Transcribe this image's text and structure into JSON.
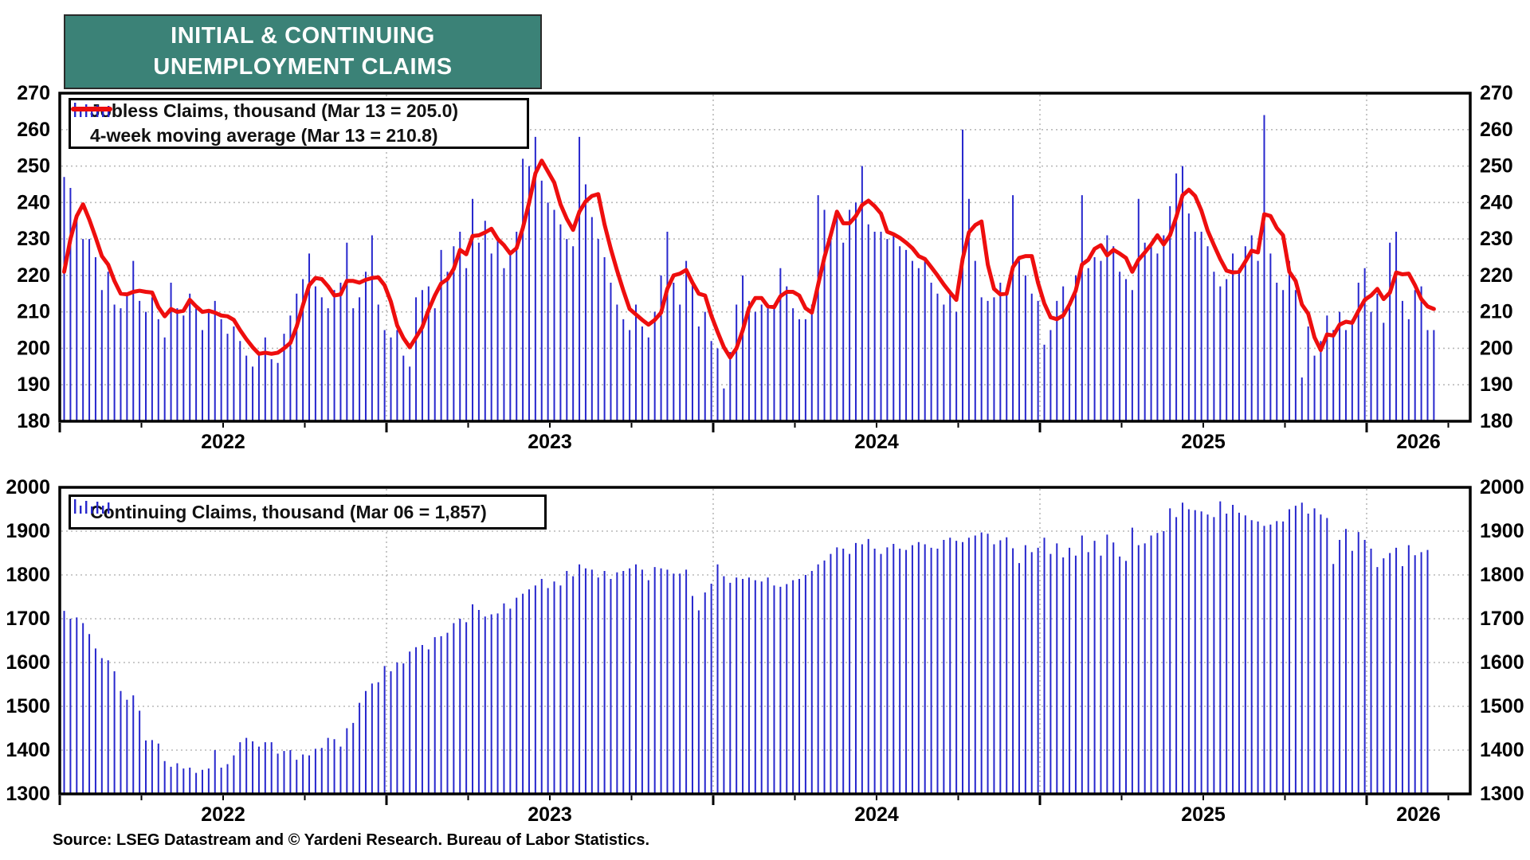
{
  "title": {
    "line1": "INITIAL & CONTINUING",
    "line2": "UNEMPLOYMENT CLAIMS"
  },
  "source": "Source: LSEG Datastream and © Yardeni Research. Bureau of Labor Statistics.",
  "colors": {
    "title_bg": "#3b8277",
    "bar": "#2727cd",
    "ma_line": "#ee0e0e",
    "grid": "#b9b9b9",
    "frame": "#000000",
    "text": "#000000"
  },
  "chart_data": [
    {
      "type": "bar",
      "name": "initial-claims",
      "legend": [
        {
          "label": "Jobless Claims, thousand (Mar 13 = 205.0)",
          "series": "values",
          "marker": "bars"
        },
        {
          "label": "4-week moving average (Mar 13 = 210.8)",
          "series": "ma4",
          "marker": "line"
        }
      ],
      "x_start": "2022-01-07",
      "x_freq": "weekly",
      "first_year": 2022,
      "weeks_per_year": 52,
      "year_labels": [
        "2022",
        "2023",
        "2024",
        "2025",
        "2026"
      ],
      "ylim": [
        180,
        270
      ],
      "ytick_step": 10,
      "grid": true,
      "values": [
        247,
        244,
        237,
        230,
        230,
        225,
        216,
        221,
        212,
        211,
        215,
        224,
        213,
        210,
        214,
        208,
        203,
        218,
        211,
        209,
        215,
        211,
        205,
        210,
        213,
        208,
        204,
        206,
        202,
        198,
        195,
        199,
        203,
        197,
        196,
        204,
        209,
        215,
        219,
        226,
        217,
        214,
        211,
        216,
        218,
        229,
        211,
        214,
        221,
        231,
        212,
        205,
        203,
        205,
        198,
        195,
        214,
        216,
        217,
        211,
        227,
        221,
        228,
        232,
        222,
        241,
        229,
        235,
        226,
        230,
        222,
        226,
        232,
        252,
        250,
        258,
        246,
        240,
        238,
        234,
        230,
        228,
        258,
        245,
        236,
        230,
        225,
        218,
        212,
        208,
        205,
        212,
        206,
        203,
        210,
        220,
        232,
        218,
        212,
        224,
        218,
        206,
        210,
        202,
        200,
        189,
        199,
        212,
        220,
        213,
        210,
        212,
        211,
        212,
        222,
        217,
        211,
        208,
        208,
        212,
        242,
        238,
        232,
        238,
        229,
        238,
        240,
        250,
        234,
        232,
        232,
        230,
        231,
        228,
        227,
        224,
        222,
        225,
        218,
        215,
        212,
        216,
        210,
        260,
        241,
        224,
        214,
        213,
        214,
        218,
        215,
        242,
        224,
        220,
        215,
        213,
        201,
        205,
        213,
        217,
        213,
        220,
        242,
        222,
        225,
        224,
        231,
        228,
        221,
        219,
        216,
        241,
        229,
        228,
        226,
        231,
        239,
        248,
        250,
        237,
        232,
        232,
        228,
        221,
        217,
        219,
        226,
        222,
        228,
        231,
        224,
        264,
        226,
        218,
        216,
        224,
        216,
        192,
        206,
        198,
        202,
        209,
        205,
        210,
        205,
        208,
        218,
        222,
        210,
        215,
        207,
        229,
        232,
        213,
        208,
        216,
        217,
        205,
        205
      ],
      "ma4": [
        221.0,
        230.0,
        236.3,
        239.5,
        235.3,
        230.5,
        225.3,
        223.0,
        218.5,
        215.0,
        214.8,
        215.5,
        215.8,
        215.5,
        215.3,
        211.3,
        208.8,
        210.8,
        210.0,
        210.3,
        213.3,
        211.5,
        210.0,
        210.3,
        209.8,
        209.0,
        208.8,
        207.8,
        205.0,
        202.5,
        200.3,
        198.5,
        198.8,
        198.5,
        198.8,
        200.0,
        201.5,
        206.0,
        211.8,
        217.3,
        219.3,
        219.0,
        217.0,
        214.5,
        214.8,
        218.5,
        218.5,
        218.0,
        218.8,
        219.3,
        219.5,
        217.3,
        212.8,
        206.3,
        202.8,
        200.3,
        203.0,
        205.8,
        210.5,
        214.5,
        217.8,
        219.0,
        221.8,
        227.0,
        225.8,
        230.8,
        231.0,
        231.8,
        232.8,
        230.0,
        228.3,
        226.0,
        227.5,
        233.0,
        240.0,
        248.0,
        251.5,
        248.5,
        245.5,
        239.5,
        235.5,
        232.5,
        237.5,
        240.3,
        241.8,
        242.3,
        234.0,
        227.3,
        221.3,
        215.8,
        210.8,
        209.3,
        207.8,
        206.5,
        207.8,
        209.8,
        216.3,
        220.0,
        220.5,
        221.5,
        218.0,
        215.0,
        214.5,
        209.0,
        204.5,
        200.3,
        197.5,
        200.0,
        205.0,
        211.0,
        213.8,
        213.8,
        211.5,
        211.3,
        214.3,
        215.5,
        215.5,
        214.5,
        211.0,
        209.8,
        217.5,
        225.0,
        231.0,
        237.5,
        234.3,
        234.3,
        236.3,
        239.3,
        240.5,
        239.0,
        237.0,
        232.0,
        231.3,
        230.3,
        229.0,
        227.5,
        225.3,
        224.5,
        222.3,
        220.0,
        217.5,
        215.3,
        213.3,
        224.5,
        231.8,
        233.8,
        234.8,
        223.0,
        216.3,
        214.8,
        215.0,
        222.3,
        224.8,
        225.3,
        225.3,
        218.0,
        212.3,
        208.5,
        208.0,
        209.0,
        212.0,
        215.8,
        223.0,
        224.3,
        227.3,
        228.3,
        225.5,
        227.0,
        226.0,
        224.8,
        221.0,
        224.3,
        226.3,
        228.5,
        231.0,
        228.5,
        231.0,
        236.0,
        242.0,
        243.5,
        241.8,
        237.8,
        232.3,
        228.3,
        224.5,
        221.3,
        220.8,
        221.0,
        223.8,
        226.8,
        226.3,
        236.8,
        236.3,
        233.0,
        231.0,
        221.0,
        218.5,
        212.0,
        209.5,
        203.0,
        199.5,
        203.8,
        203.5,
        206.5,
        207.3,
        207.0,
        210.3,
        213.3,
        214.5,
        216.3,
        213.5,
        215.3,
        220.8,
        220.3,
        220.5,
        217.3,
        213.5,
        211.5,
        210.8
      ]
    },
    {
      "type": "bar",
      "name": "continuing-claims",
      "legend": [
        {
          "label": "Continuing Claims, thousand (Mar 06 = 1,857)",
          "series": "values",
          "marker": "bars"
        }
      ],
      "x_start": "2022-01-07",
      "x_freq": "weekly",
      "first_year": 2022,
      "weeks_per_year": 52,
      "year_labels": [
        "2022",
        "2023",
        "2024",
        "2025",
        "2026"
      ],
      "ylim": [
        1300,
        2000
      ],
      "ytick_step": 100,
      "grid": true,
      "values": [
        1718,
        1700,
        1703,
        1690,
        1665,
        1632,
        1610,
        1605,
        1580,
        1535,
        1515,
        1525,
        1490,
        1422,
        1423,
        1415,
        1375,
        1362,
        1370,
        1358,
        1360,
        1348,
        1355,
        1358,
        1400,
        1360,
        1368,
        1388,
        1418,
        1428,
        1420,
        1408,
        1418,
        1418,
        1392,
        1398,
        1400,
        1378,
        1390,
        1388,
        1403,
        1405,
        1428,
        1425,
        1408,
        1450,
        1462,
        1508,
        1535,
        1552,
        1555,
        1592,
        1580,
        1600,
        1598,
        1625,
        1635,
        1640,
        1630,
        1658,
        1660,
        1668,
        1690,
        1700,
        1692,
        1733,
        1720,
        1705,
        1710,
        1712,
        1735,
        1723,
        1748,
        1757,
        1767,
        1776,
        1791,
        1770,
        1785,
        1776,
        1809,
        1797,
        1824,
        1815,
        1812,
        1794,
        1809,
        1791,
        1806,
        1809,
        1815,
        1824,
        1812,
        1788,
        1818,
        1815,
        1812,
        1803,
        1803,
        1812,
        1752,
        1719,
        1760,
        1780,
        1824,
        1797,
        1782,
        1794,
        1791,
        1794,
        1788,
        1785,
        1794,
        1776,
        1773,
        1779,
        1788,
        1791,
        1800,
        1809,
        1824,
        1833,
        1848,
        1863,
        1860,
        1848,
        1873,
        1870,
        1882,
        1860,
        1848,
        1863,
        1871,
        1860,
        1857,
        1868,
        1875,
        1870,
        1862,
        1860,
        1880,
        1885,
        1878,
        1875,
        1885,
        1890,
        1897,
        1894,
        1870,
        1879,
        1886,
        1861,
        1827,
        1868,
        1852,
        1862,
        1885,
        1848,
        1872,
        1840,
        1862,
        1844,
        1890,
        1852,
        1878,
        1844,
        1892,
        1874,
        1842,
        1832,
        1908,
        1868,
        1872,
        1890,
        1896,
        1900,
        1952,
        1932,
        1965,
        1950,
        1948,
        1945,
        1938,
        1932,
        1968,
        1940,
        1960,
        1942,
        1936,
        1925,
        1922,
        1912,
        1915,
        1923,
        1922,
        1950,
        1958,
        1965,
        1940,
        1952,
        1938,
        1930,
        1825,
        1880,
        1905,
        1855,
        1898,
        1880,
        1860,
        1818,
        1838,
        1850,
        1862,
        1820,
        1868,
        1845,
        1852,
        1857
      ]
    }
  ]
}
